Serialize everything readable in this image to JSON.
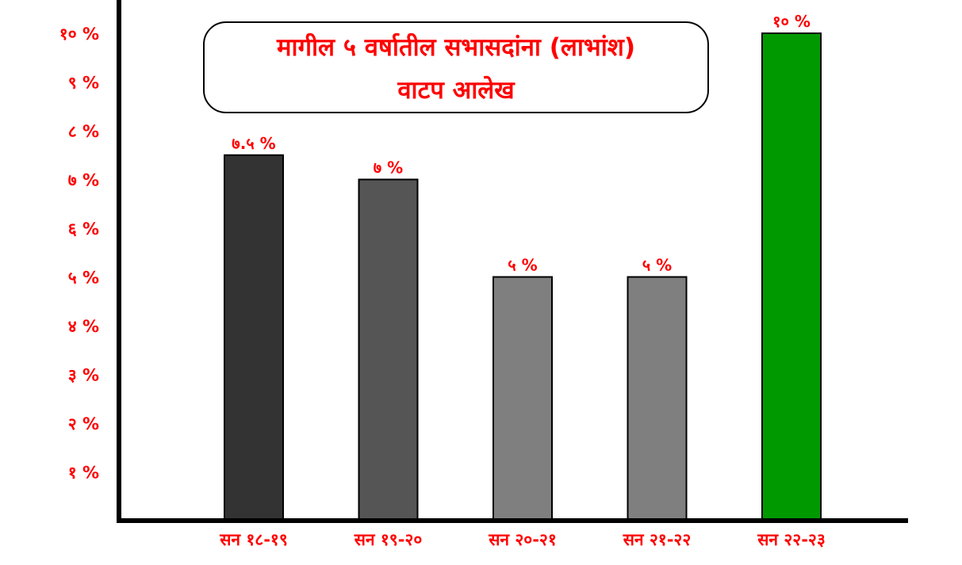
{
  "chart_data": {
    "type": "bar",
    "title": "मागील ५ वर्षातील सभासदांना (लाभांश) वाटप आलेख",
    "title_lines": [
      "मागील ५ वर्षातील सभासदांना (लाभांश)",
      "वाटप आलेख"
    ],
    "categories": [
      "सन १८-१९",
      "सन १९-२०",
      "सन २०-२१",
      "सन २१-२२",
      "सन २२-२३"
    ],
    "values": [
      7.5,
      7,
      5,
      5,
      10
    ],
    "data_labels": [
      "७.५ %",
      "७ %",
      "५ %",
      "५ %",
      "१० %"
    ],
    "bar_colors": [
      "#333333",
      "#555555",
      "#7f7f7f",
      "#7f7f7f",
      "#009900"
    ],
    "ylim": [
      0,
      10
    ],
    "ytick_values": [
      1,
      2,
      3,
      4,
      5,
      6,
      7,
      8,
      9,
      10
    ],
    "ytick_labels": [
      "१ %",
      "२ %",
      "३ %",
      "४ %",
      "५ %",
      "६ %",
      "७ %",
      "८ %",
      "९ %",
      "१० %"
    ],
    "xlabel": "",
    "ylabel": "",
    "grid": false,
    "label_color": "#ff0000"
  }
}
